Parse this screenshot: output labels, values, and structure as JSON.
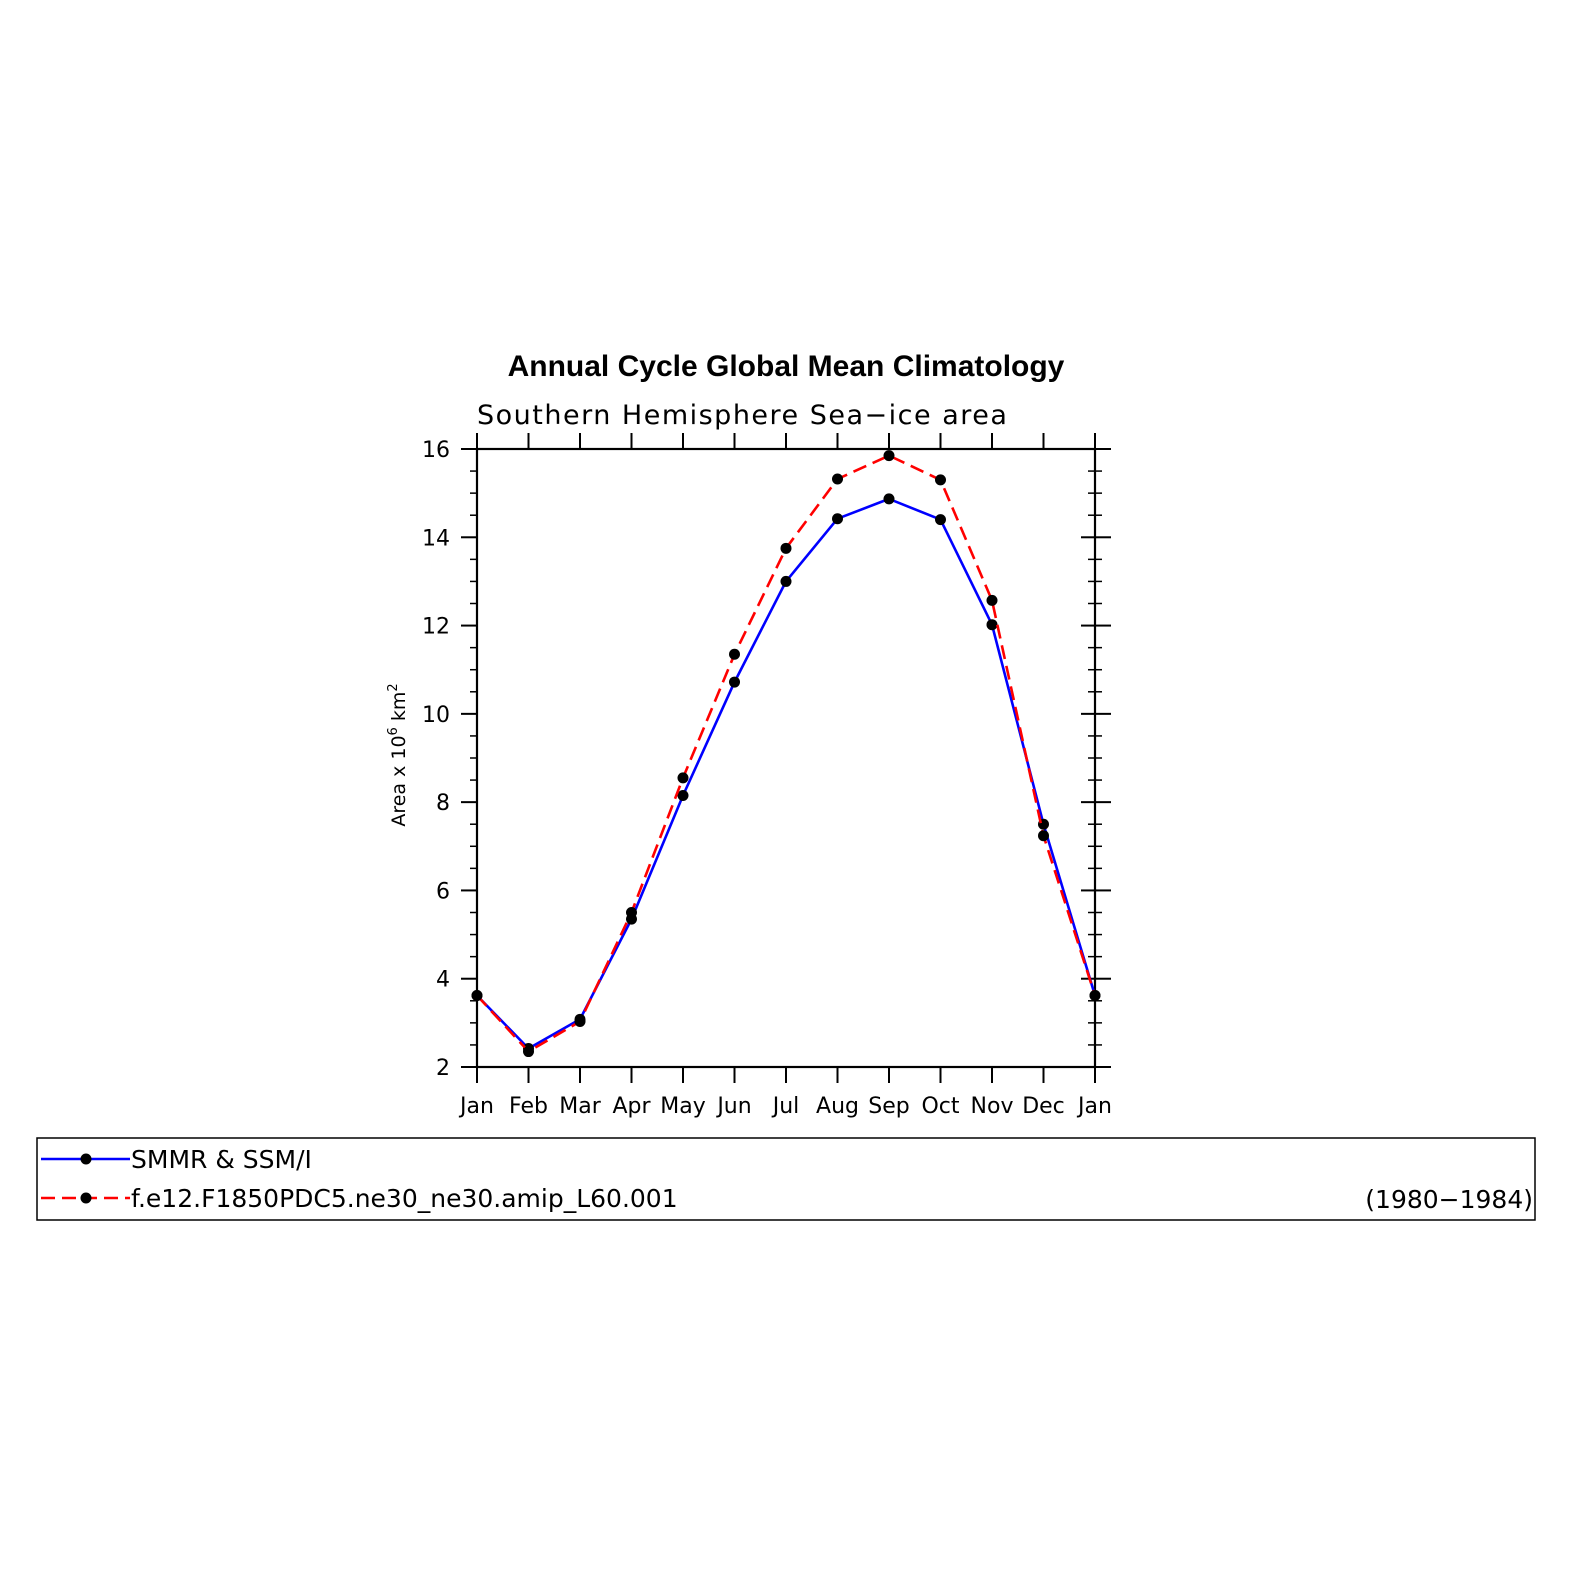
{
  "chart_data": {
    "type": "line",
    "title": "Annual Cycle Global Mean Climatology",
    "subtitle": "Southern Hemisphere Sea−ice area",
    "ylabel_main": "Area x 10",
    "ylabel_exp": "6",
    "ylabel_unit": " km",
    "ylabel_unit_exp": "2",
    "xlabel": "",
    "categories": [
      "Jan",
      "Feb",
      "Mar",
      "Apr",
      "May",
      "Jun",
      "Jul",
      "Aug",
      "Sep",
      "Oct",
      "Nov",
      "Dec",
      "Jan"
    ],
    "ylim": [
      2,
      16
    ],
    "yticks": [
      2,
      4,
      6,
      8,
      10,
      12,
      14,
      16
    ],
    "yticks_minor_step": 0.5,
    "grid": false,
    "legend_position": "bottom",
    "series": [
      {
        "name": "SMMR & SSM/I",
        "color": "#0000ff",
        "dash": "solid",
        "marker": "filled-circle",
        "values": [
          3.62,
          2.42,
          3.08,
          5.35,
          8.15,
          10.72,
          13.0,
          14.42,
          14.87,
          14.4,
          12.02,
          7.5,
          3.62
        ]
      },
      {
        "name": "f.e12.F1850PDC5.ne30_ne30.amip_L60.001",
        "color": "#ff0000",
        "dash": "dashed",
        "marker": "filled-circle",
        "values": [
          3.62,
          2.35,
          3.03,
          5.5,
          8.55,
          11.35,
          13.75,
          15.32,
          15.85,
          15.3,
          12.57,
          7.24,
          3.62
        ]
      }
    ],
    "legend_note": "(1980−1984)"
  }
}
